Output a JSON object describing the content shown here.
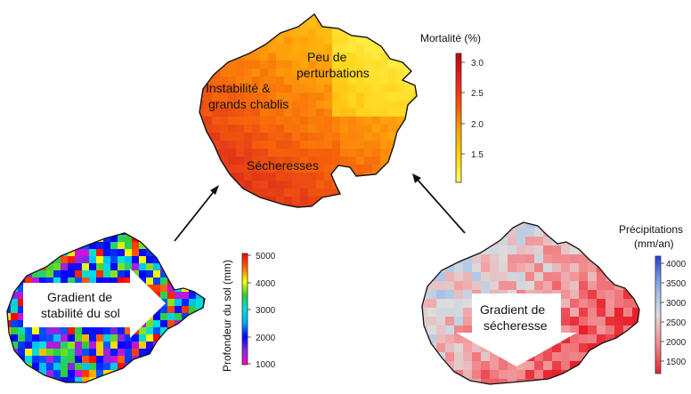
{
  "top_map": {
    "annotations": {
      "peu_line1": "Peu de",
      "peu_line2": "perturbations",
      "inst_line1": "Instabilité &",
      "inst_line2": "grands chablis",
      "secheresses": "Sécheresses"
    },
    "colorbar": {
      "title": "Mortalité (%)",
      "ticks": [
        "3.0",
        "2.5",
        "2.0",
        "1.5"
      ],
      "colors": [
        "#ffff66",
        "#ffd700",
        "#ffa500",
        "#ff5500",
        "#e8201f",
        "#cc0000"
      ]
    }
  },
  "left_map": {
    "arrow_line1": "Gradient de",
    "arrow_line2": "stabilité du sol",
    "colorbar": {
      "title": "Profondeur du sol (mm)",
      "ticks": [
        "5000",
        "4000",
        "3000",
        "2000",
        "1000"
      ],
      "colors": [
        "#ff00cc",
        "#8a2be2",
        "#0000ff",
        "#00aaff",
        "#00e0e0",
        "#33cc33",
        "#ffff00",
        "#ff6600",
        "#ff0000"
      ]
    }
  },
  "right_map": {
    "arrow_line1": "Gradient de",
    "arrow_line2": "sécheresse",
    "colorbar": {
      "title_line1": "Précipitations",
      "title_line2": "(mm/an)",
      "ticks": [
        "4000",
        "3500",
        "3000",
        "2500",
        "2000",
        "1500"
      ],
      "colors": [
        "#e8202a",
        "#ef6a70",
        "#f2a3a6",
        "#dcdcdc",
        "#a9c4e8",
        "#6b8fe0",
        "#1f3fd6"
      ]
    }
  }
}
